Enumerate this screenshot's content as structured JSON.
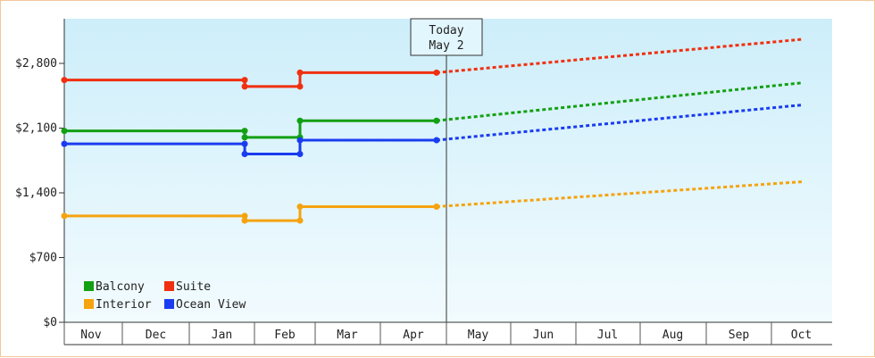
{
  "chart_data": {
    "type": "line",
    "title": "",
    "xlabel": "",
    "ylabel": "",
    "ylim": [
      0,
      2800
    ],
    "y_ticks": [
      {
        "value": 0,
        "label": "$0"
      },
      {
        "value": 700,
        "label": "$700"
      },
      {
        "value": 1400,
        "label": "$1,400"
      },
      {
        "value": 2100,
        "label": "$2,100"
      },
      {
        "value": 2800,
        "label": "$2,800"
      }
    ],
    "x_categories": [
      "Nov",
      "Dec",
      "Jan",
      "Feb",
      "Mar",
      "Apr",
      "May",
      "Jun",
      "Jul",
      "Aug",
      "Sep",
      "Oct"
    ],
    "today_marker": {
      "line1": "Today",
      "line2": "May 2",
      "x": 6.0
    },
    "legend_position": "bottom-left",
    "grid": false,
    "background": {
      "top": "#cdeefa",
      "bottom": "#f2fbfe"
    },
    "series": [
      {
        "name": "Balcony",
        "color": "#13a013",
        "history": [
          [
            0.0,
            2070
          ],
          [
            2.85,
            2070
          ],
          [
            2.85,
            2000
          ],
          [
            3.75,
            2000
          ],
          [
            3.75,
            2180
          ],
          [
            5.85,
            2180
          ]
        ],
        "points": [
          [
            0.0,
            2070
          ],
          [
            2.85,
            2070
          ],
          [
            2.85,
            2000
          ],
          [
            3.75,
            2000
          ],
          [
            3.75,
            2180
          ],
          [
            5.85,
            2180
          ]
        ],
        "forecast": [
          [
            5.85,
            2180
          ],
          [
            11.5,
            2590
          ]
        ]
      },
      {
        "name": "Suite",
        "color": "#f03010",
        "history": [
          [
            0.0,
            2620
          ],
          [
            2.85,
            2620
          ],
          [
            2.85,
            2550
          ],
          [
            3.75,
            2550
          ],
          [
            3.75,
            2700
          ],
          [
            5.85,
            2700
          ]
        ],
        "points": [
          [
            0.0,
            2620
          ],
          [
            2.85,
            2620
          ],
          [
            2.85,
            2550
          ],
          [
            3.75,
            2550
          ],
          [
            3.75,
            2700
          ],
          [
            5.85,
            2700
          ]
        ],
        "forecast": [
          [
            5.85,
            2700
          ],
          [
            11.5,
            3060
          ]
        ]
      },
      {
        "name": "Interior",
        "color": "#f5a30f",
        "history": [
          [
            0.0,
            1150
          ],
          [
            2.85,
            1150
          ],
          [
            2.85,
            1100
          ],
          [
            3.75,
            1100
          ],
          [
            3.75,
            1250
          ],
          [
            5.85,
            1250
          ]
        ],
        "points": [
          [
            0.0,
            1150
          ],
          [
            2.85,
            1150
          ],
          [
            2.85,
            1100
          ],
          [
            3.75,
            1100
          ],
          [
            3.75,
            1250
          ],
          [
            5.85,
            1250
          ]
        ],
        "forecast": [
          [
            5.85,
            1250
          ],
          [
            11.5,
            1520
          ]
        ]
      },
      {
        "name": "Ocean View",
        "color": "#1a3cf0",
        "history": [
          [
            0.0,
            1930
          ],
          [
            2.85,
            1930
          ],
          [
            2.85,
            1820
          ],
          [
            3.75,
            1820
          ],
          [
            3.75,
            1970
          ],
          [
            5.85,
            1970
          ]
        ],
        "points": [
          [
            0.0,
            1930
          ],
          [
            2.85,
            1930
          ],
          [
            2.85,
            1820
          ],
          [
            3.75,
            1820
          ],
          [
            3.75,
            1970
          ],
          [
            5.85,
            1970
          ]
        ],
        "forecast": [
          [
            5.85,
            1970
          ],
          [
            11.5,
            2350
          ]
        ]
      }
    ]
  }
}
